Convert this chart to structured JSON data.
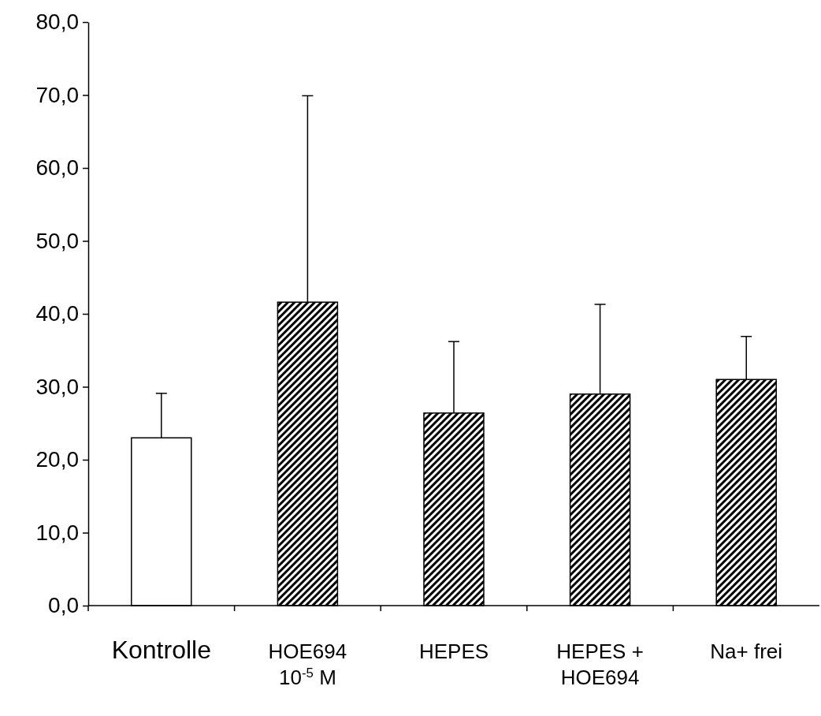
{
  "chart_data": {
    "type": "bar",
    "categories": [
      "Kontrolle",
      "HOE694\n10$^{-5}$ M",
      "HEPES",
      "HEPES +\nHOE694",
      "Na+ frei"
    ],
    "values": [
      23.0,
      41.6,
      26.4,
      29.0,
      31.0
    ],
    "errors": [
      [
        23.0,
        29.1
      ],
      [
        41.6,
        69.9
      ],
      [
        26.4,
        36.2
      ],
      [
        29.0,
        41.3
      ],
      [
        31.0,
        36.9
      ]
    ],
    "colors": [
      "#ffffff",
      "#000000",
      "#000000",
      "#000000",
      "#000000"
    ],
    "ylim": [
      0,
      80
    ],
    "yticks": [
      {
        "value": 0,
        "label": "0,0"
      },
      {
        "value": 10,
        "label": "10,0"
      },
      {
        "value": 20,
        "label": "20,0"
      },
      {
        "value": 30,
        "label": "30,0"
      },
      {
        "value": 40,
        "label": "40,0"
      },
      {
        "value": 50,
        "label": "50,0"
      },
      {
        "value": 60,
        "label": "60,0"
      },
      {
        "value": 70,
        "label": "70,0"
      },
      {
        "value": 80,
        "label": "80,0"
      }
    ],
    "grid": false
  }
}
